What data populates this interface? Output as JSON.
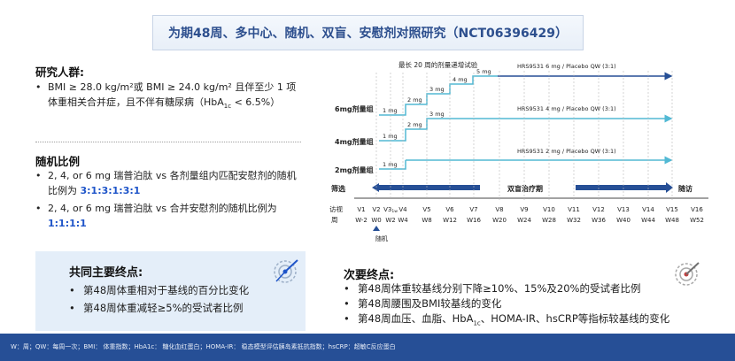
{
  "title": "为期48周、多中心、随机、双盲、安慰剂对照研究（NCT06396429）",
  "population": {
    "heading": "研究人群:",
    "bullet_pre": "BMI ≥ 28.0 kg/m²或 BMI ≥ 24.0 kg/m² 且伴至少 1 项体重相关合并症，且不伴有糖尿病（HbA",
    "bullet_sub": "1c",
    "bullet_post": " < 6.5%）"
  },
  "randomization": {
    "heading": "随机比例",
    "item1_text": "2, 4, or 6 mg 瑞普泊肽 vs 各剂量组内匹配安慰剂的随机比例为 ",
    "item1_ratio": "3:1:3:1:3:1",
    "item2_text": "2, 4, or 6 mg 瑞普泊肽 vs 合并安慰剂的随机比例为 ",
    "item2_ratio": "1:1:1:1"
  },
  "design": {
    "titration_label": "最长 20 周的剂量递增试验",
    "group_labels": [
      "6mg剂量组",
      "4mg剂量组",
      "2mg剂量组"
    ],
    "arms": [
      "HRS9531  6 mg / Placebo QW (3:1)",
      "HRS9531  4 mg / Placebo QW (3:1)",
      "HRS9531  2 mg / Placebo QW (3:1)"
    ],
    "steps_6mg": [
      "1 mg",
      "2 mg",
      "3 mg",
      "4 mg",
      "5 mg"
    ],
    "steps_4mg": [
      "1 mg",
      "2 mg",
      "3 mg"
    ],
    "steps_2mg": [
      "1 mg"
    ],
    "phase_screen": "筛选",
    "phase_treat": "双盲治疗期",
    "phase_follow": "随访",
    "visit_label": "访视",
    "week_label": "周",
    "visits": [
      "V1",
      "V2",
      "V3",
      "V4",
      "V5",
      "V6",
      "V7",
      "V8",
      "V9",
      "V10",
      "V11",
      "V12",
      "V13",
      "V14",
      "V15",
      "V16"
    ],
    "v3_sub": "1w",
    "weeks": [
      "W-2",
      "W0",
      "W2",
      "W4",
      "W8",
      "W12",
      "W16",
      "W20",
      "W24",
      "W28",
      "W32",
      "W36",
      "W40",
      "W44",
      "W48",
      "W52"
    ],
    "random_label": "随机"
  },
  "primary": {
    "title": "共同主要终点:",
    "items": [
      "第48周体重相对于基线的百分比变化",
      "第48周体重减轻≥5%的受试者比例"
    ]
  },
  "secondary": {
    "title": "次要终点:",
    "item1": "第48周体重较基线分别下降≥10%、15%及20%的受试者比例",
    "item2": "第48周腰围及BMI较基线的变化",
    "item3_pre": "第48周血压、血脂、HbA",
    "item3_sub": "1c",
    "item3_post": "、HOMA-IR、hsCRP等指标较基线的变化"
  },
  "footer": "W：周；QW：每周一次；BMI： 体重指数；HbA1c： 糖化血红蛋白；HOMA-IR： 稳态模型评估胰岛素抵抗指数；hsCRP：超敏C反应蛋白",
  "colors": {
    "accent": "#1f55c9",
    "teal": "#52b9d4",
    "dark_blue": "#264f96"
  }
}
